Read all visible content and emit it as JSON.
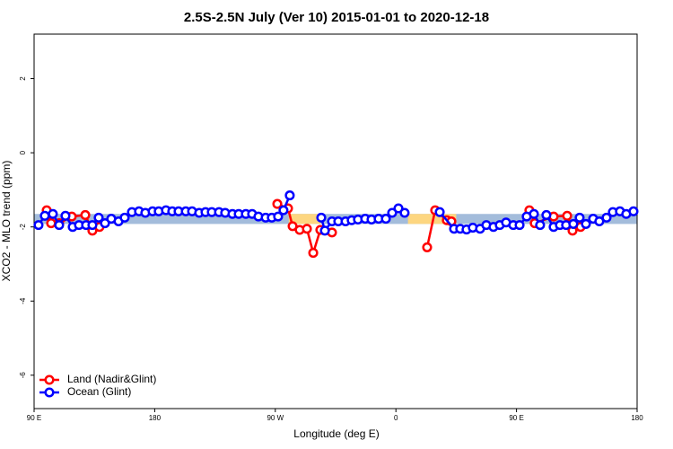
{
  "chart_data": {
    "type": "line",
    "title": "2.5S-2.5N July (Ver 10)   2015-01-01 to 2020-12-18",
    "x_label": "Longitude (deg E)",
    "y_label": "XCO2 - MLO trend (ppm)",
    "xlim": [
      90,
      540
    ],
    "ylim": [
      -6.9,
      3.2
    ],
    "xticks": [
      {
        "value": 90,
        "label": "90 E"
      },
      {
        "value": 180,
        "label": "180"
      },
      {
        "value": 270,
        "label": "90 W"
      },
      {
        "value": 360,
        "label": "0"
      },
      {
        "value": 450,
        "label": "90 E"
      },
      {
        "value": 540,
        "label": "180"
      }
    ],
    "yticks": [
      -6,
      -4,
      -2,
      0,
      2
    ],
    "legend": "bottom-left",
    "bands": [
      {
        "xlim": [
          90,
          540
        ],
        "ylim": [
          -1.92,
          -1.65
        ],
        "color": "#a3bcdb"
      },
      {
        "xlim": [
          280,
          304
        ],
        "ylim": [
          -1.92,
          -1.65
        ],
        "color": "#fdd680"
      },
      {
        "xlim": [
          369,
          405
        ],
        "ylim": [
          -1.92,
          -1.65
        ],
        "color": "#fdd680"
      }
    ],
    "series": [
      {
        "name": "Land (Nadir&Glint)",
        "color": "#ff0000",
        "x": [
          99.4,
          102.7,
          108.7,
          118.1,
          128.2,
          133.5,
          138.8,
          null,
          271.5,
          279.5,
          282.9,
          288.2,
          293.6,
          298.3,
          303.6,
          312.3,
          null,
          383.3,
          389.3,
          398,
          401.4,
          null,
          459.6,
          463.6,
          477.7,
          487.8,
          491.8,
          497.8
        ],
        "values": [
          -1.55,
          -1.9,
          -1.9,
          -1.72,
          -1.68,
          -2.1,
          -2.0,
          null,
          -1.38,
          -1.5,
          -1.98,
          -2.08,
          -2.05,
          -2.7,
          -2.08,
          -2.15,
          null,
          -2.55,
          -1.55,
          -1.82,
          -1.85,
          null,
          -1.55,
          -1.9,
          -1.72,
          -1.7,
          -2.1,
          -2.0
        ]
      },
      {
        "name": "Ocean (Glint)",
        "color": "#0000ff",
        "x": [
          93.3,
          98,
          104,
          108.7,
          113.4,
          118.8,
          123.5,
          128.8,
          133.5,
          138.2,
          142.9,
          147.6,
          153,
          157.6,
          163,
          168.3,
          173,
          178.4,
          183,
          188.4,
          193.1,
          197.8,
          203.2,
          207.9,
          213.2,
          217.9,
          222.6,
          228,
          232.6,
          238,
          242.7,
          248,
          252.7,
          257.4,
          262.8,
          267.4,
          272.1,
          276.1,
          280.8,
          null,
          304.3,
          307,
          312.3,
          317,
          322.4,
          327,
          331.7,
          337.1,
          341.8,
          347.1,
          352.5,
          357.2,
          361.9,
          366.5,
          null,
          392.7,
          403.4,
          408,
          412.7,
          417.4,
          422.8,
          427.5,
          432.8,
          437.5,
          442.2,
          447.6,
          452.3,
          457.6,
          463,
          467.6,
          472.3,
          477.7,
          482.4,
          487,
          492.4,
          497.1,
          501.8,
          507.2,
          511.8,
          517.2,
          521.9,
          527.2,
          531.9,
          537.3
        ],
        "values": [
          -1.95,
          -1.7,
          -1.65,
          -1.95,
          -1.7,
          -2.0,
          -1.95,
          -1.95,
          -1.95,
          -1.75,
          -1.9,
          -1.78,
          -1.85,
          -1.75,
          -1.6,
          -1.58,
          -1.62,
          -1.58,
          -1.58,
          -1.55,
          -1.58,
          -1.58,
          -1.58,
          -1.58,
          -1.62,
          -1.6,
          -1.6,
          -1.6,
          -1.62,
          -1.65,
          -1.65,
          -1.65,
          -1.65,
          -1.72,
          -1.75,
          -1.75,
          -1.72,
          -1.55,
          -1.15,
          null,
          -1.75,
          -2.1,
          -1.85,
          -1.85,
          -1.85,
          -1.82,
          -1.8,
          -1.78,
          -1.8,
          -1.78,
          -1.78,
          -1.62,
          -1.5,
          -1.62,
          null,
          -1.6,
          -2.05,
          -2.05,
          -2.07,
          -2.02,
          -2.05,
          -1.95,
          -2.0,
          -1.95,
          -1.88,
          -1.95,
          -1.95,
          -1.72,
          -1.65,
          -1.95,
          -1.68,
          -2.0,
          -1.95,
          -1.95,
          -1.92,
          -1.75,
          -1.92,
          -1.78,
          -1.85,
          -1.75,
          -1.6,
          -1.58,
          -1.65,
          -1.58
        ]
      }
    ]
  }
}
